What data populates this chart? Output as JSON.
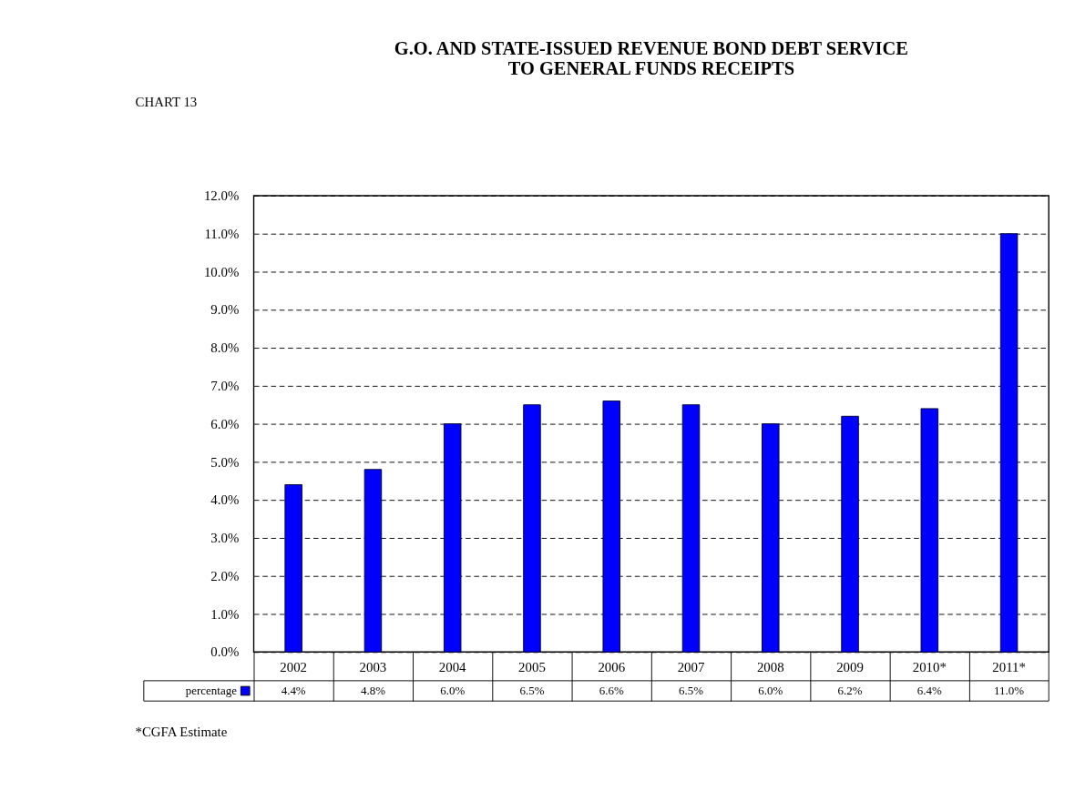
{
  "chart_data": {
    "type": "bar",
    "title": "G.O. AND STATE-ISSUED REVENUE BOND DEBT SERVICE\nTO GENERAL FUNDS RECEIPTS",
    "categories": [
      "2002",
      "2003",
      "2004",
      "2005",
      "2006",
      "2007",
      "2008",
      "2009",
      "2010*",
      "2011*"
    ],
    "series": [
      {
        "name": "percentage",
        "color": "#0000ff",
        "values": [
          4.4,
          4.8,
          6.0,
          6.5,
          6.6,
          6.5,
          6.0,
          6.2,
          6.4,
          11.0
        ],
        "value_labels": [
          "4.4%",
          "4.8%",
          "6.0%",
          "6.5%",
          "6.6%",
          "6.5%",
          "6.0%",
          "6.2%",
          "6.4%",
          "11.0%"
        ]
      }
    ],
    "ylim": [
      0,
      12
    ],
    "yticks": [
      {
        "value": 0,
        "label": "0.0%"
      },
      {
        "value": 1,
        "label": "1.0%"
      },
      {
        "value": 2,
        "label": "2.0%"
      },
      {
        "value": 3,
        "label": "3.0%"
      },
      {
        "value": 4,
        "label": "4.0%"
      },
      {
        "value": 5,
        "label": "5.0%"
      },
      {
        "value": 6,
        "label": "6.0%"
      },
      {
        "value": 7,
        "label": "7.0%"
      },
      {
        "value": 8,
        "label": "8.0%"
      },
      {
        "value": 9,
        "label": "9.0%"
      },
      {
        "value": 10,
        "label": "10.0%"
      },
      {
        "value": 11,
        "label": "11.0%"
      },
      {
        "value": 12,
        "label": "12.0%"
      }
    ],
    "grid": "y",
    "legend": "bottom left",
    "annotations": [
      "CHART 13",
      "*CGFA Estimate"
    ]
  }
}
